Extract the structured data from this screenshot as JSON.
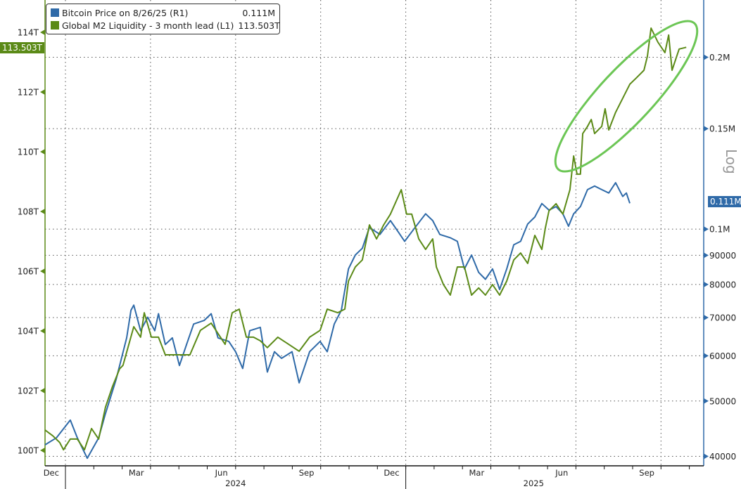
{
  "chart_data": {
    "type": "line",
    "title": "",
    "x_units": "months since 2024-01-01",
    "xlim": [
      -0.72,
      22.5
    ],
    "x_tick_labels": [
      {
        "label": "Dec",
        "month": -1
      },
      {
        "label": "Mar",
        "month": 2
      },
      {
        "label": "Jun",
        "month": 5
      },
      {
        "label": "Sep",
        "month": 8
      },
      {
        "label": "Dec",
        "month": 11
      },
      {
        "label": "Mar",
        "month": 14
      },
      {
        "label": "Jun",
        "month": 17
      },
      {
        "label": "Sep",
        "month": 20
      }
    ],
    "year_labels": [
      {
        "label": "2024",
        "start": 0,
        "end": 12
      },
      {
        "label": "2025",
        "start": 12,
        "end": 24
      }
    ],
    "left_axis": {
      "name": "L1",
      "min": 99.75,
      "max": 115.6,
      "ticks": [
        100,
        102,
        104,
        106,
        108,
        110,
        112,
        114
      ],
      "tick_labels": [
        "100T",
        "102T",
        "104T",
        "106T",
        "108T",
        "110T",
        "112T",
        "114T"
      ],
      "color": "#5b8a17"
    },
    "right_axis": {
      "name": "R1",
      "scale": "log",
      "label": "Log",
      "min": 38500,
      "max": 252000,
      "ticks": [
        40000,
        50000,
        60000,
        70000,
        80000,
        90000,
        100000,
        150000,
        200000
      ],
      "tick_labels": [
        "40000",
        "50000",
        "60000",
        "70000",
        "80000",
        "90000",
        "0.1M",
        "0.15M",
        "0.2M"
      ],
      "color": "#2f6aa8"
    },
    "grid": "dotted horizontal at right-axis ticks, dotted vertical at quarter starts",
    "legend": {
      "placement": "top-left",
      "entries": [
        {
          "label": "Bitcoin Price on 8/26/25 (R1)",
          "value": "0.111M",
          "color": "#2f6aa8"
        },
        {
          "label": "Global M2 Liquidity - 3 month lead (L1)",
          "value": "113.503T",
          "color": "#5b8a17"
        }
      ]
    },
    "last_value_badges": {
      "left": "113.503T",
      "right": "0.111M"
    },
    "annotation": {
      "type": "ellipse",
      "color": "#6cc655",
      "target": "Global M2 Liquidity rise, Jun–Oct 2025"
    },
    "series": [
      {
        "name": "Bitcoin Price on 8/26/25",
        "axis": "R1",
        "color": "#2f6aa8",
        "units": "USD thousands",
        "points": [
          [
            -0.72,
            41.9
          ],
          [
            -0.32,
            43.1
          ],
          [
            0.17,
            46.3
          ],
          [
            0.42,
            43.1
          ],
          [
            0.77,
            39.7
          ],
          [
            1.17,
            43.1
          ],
          [
            1.41,
            47.5
          ],
          [
            1.79,
            54.6
          ],
          [
            2.16,
            64.5
          ],
          [
            2.31,
            72.1
          ],
          [
            2.41,
            73.6
          ],
          [
            2.65,
            66.4
          ],
          [
            2.9,
            70.1
          ],
          [
            3.15,
            66.4
          ],
          [
            3.28,
            71.1
          ],
          [
            3.52,
            62.8
          ],
          [
            3.77,
            64.5
          ],
          [
            4.02,
            57.7
          ],
          [
            4.27,
            62.8
          ],
          [
            4.52,
            68.2
          ],
          [
            4.89,
            69.2
          ],
          [
            5.14,
            71.1
          ],
          [
            5.38,
            64.5
          ],
          [
            5.76,
            63.6
          ],
          [
            6.0,
            61.0
          ],
          [
            6.25,
            57.0
          ],
          [
            6.5,
            66.4
          ],
          [
            6.87,
            67.3
          ],
          [
            7.12,
            56.2
          ],
          [
            7.37,
            61.0
          ],
          [
            7.62,
            59.4
          ],
          [
            7.99,
            61.0
          ],
          [
            8.24,
            53.8
          ],
          [
            8.61,
            61.0
          ],
          [
            8.98,
            63.6
          ],
          [
            9.23,
            61.0
          ],
          [
            9.48,
            68.2
          ],
          [
            9.73,
            72.1
          ],
          [
            9.98,
            85.2
          ],
          [
            10.22,
            90.1
          ],
          [
            10.47,
            92.6
          ],
          [
            10.72,
            100.7
          ],
          [
            11.09,
            97.9
          ],
          [
            11.46,
            103.5
          ],
          [
            11.71,
            99.3
          ],
          [
            11.96,
            95.2
          ],
          [
            12.33,
            100.7
          ],
          [
            12.7,
            106.4
          ],
          [
            12.95,
            103.5
          ],
          [
            13.2,
            97.9
          ],
          [
            13.57,
            96.6
          ],
          [
            13.82,
            95.2
          ],
          [
            14.07,
            85.2
          ],
          [
            14.32,
            90.1
          ],
          [
            14.57,
            84.0
          ],
          [
            14.81,
            81.7
          ],
          [
            15.06,
            85.2
          ],
          [
            15.31,
            78.4
          ],
          [
            15.56,
            85.2
          ],
          [
            15.81,
            93.9
          ],
          [
            16.05,
            95.2
          ],
          [
            16.3,
            102.1
          ],
          [
            16.55,
            105.0
          ],
          [
            16.8,
            110.9
          ],
          [
            17.05,
            108.0
          ],
          [
            17.3,
            109.5
          ],
          [
            17.54,
            106.4
          ],
          [
            17.74,
            101.2
          ],
          [
            17.92,
            106.4
          ],
          [
            18.16,
            109.5
          ],
          [
            18.41,
            117.3
          ],
          [
            18.66,
            119.0
          ],
          [
            18.91,
            117.3
          ],
          [
            19.16,
            115.7
          ],
          [
            19.4,
            120.6
          ],
          [
            19.65,
            114.1
          ],
          [
            19.78,
            115.7
          ],
          [
            19.9,
            111.0
          ]
        ]
      },
      {
        "name": "Global M2 Liquidity - 3 month lead",
        "axis": "L1",
        "color": "#5b8a17",
        "units": "USD trillions",
        "points": [
          [
            -0.72,
            100.68
          ],
          [
            -0.45,
            100.49
          ],
          [
            -0.2,
            100.26
          ],
          [
            -0.07,
            100.02
          ],
          [
            0.17,
            100.38
          ],
          [
            0.42,
            100.38
          ],
          [
            0.67,
            100.02
          ],
          [
            0.92,
            100.73
          ],
          [
            1.17,
            100.38
          ],
          [
            1.41,
            101.44
          ],
          [
            1.66,
            102.14
          ],
          [
            1.91,
            102.73
          ],
          [
            2.03,
            102.85
          ],
          [
            2.41,
            104.14
          ],
          [
            2.65,
            103.79
          ],
          [
            2.78,
            104.61
          ],
          [
            3.03,
            103.79
          ],
          [
            3.28,
            103.79
          ],
          [
            3.52,
            103.2
          ],
          [
            3.9,
            103.2
          ],
          [
            4.39,
            103.2
          ],
          [
            4.76,
            104.02
          ],
          [
            5.14,
            104.26
          ],
          [
            5.63,
            103.55
          ],
          [
            5.88,
            104.61
          ],
          [
            6.13,
            104.73
          ],
          [
            6.38,
            103.79
          ],
          [
            6.63,
            103.79
          ],
          [
            6.87,
            103.67
          ],
          [
            7.12,
            103.44
          ],
          [
            7.49,
            103.79
          ],
          [
            7.87,
            103.55
          ],
          [
            8.24,
            103.32
          ],
          [
            8.61,
            103.79
          ],
          [
            8.98,
            104.02
          ],
          [
            9.23,
            104.73
          ],
          [
            9.6,
            104.61
          ],
          [
            9.85,
            104.73
          ],
          [
            9.98,
            105.67
          ],
          [
            10.22,
            106.14
          ],
          [
            10.47,
            106.38
          ],
          [
            10.72,
            107.55
          ],
          [
            10.97,
            107.08
          ],
          [
            11.22,
            107.55
          ],
          [
            11.46,
            107.91
          ],
          [
            11.84,
            108.73
          ],
          [
            12.03,
            107.91
          ],
          [
            12.21,
            107.91
          ],
          [
            12.46,
            107.08
          ],
          [
            12.7,
            106.73
          ],
          [
            12.95,
            107.08
          ],
          [
            13.08,
            106.14
          ],
          [
            13.33,
            105.55
          ],
          [
            13.57,
            105.2
          ],
          [
            13.82,
            106.14
          ],
          [
            14.07,
            106.14
          ],
          [
            14.32,
            105.2
          ],
          [
            14.57,
            105.44
          ],
          [
            14.81,
            105.2
          ],
          [
            15.06,
            105.55
          ],
          [
            15.31,
            105.2
          ],
          [
            15.56,
            105.67
          ],
          [
            15.81,
            106.38
          ],
          [
            16.05,
            106.61
          ],
          [
            16.3,
            106.26
          ],
          [
            16.55,
            107.2
          ],
          [
            16.8,
            106.73
          ],
          [
            16.92,
            107.44
          ],
          [
            17.05,
            108.02
          ],
          [
            17.3,
            108.26
          ],
          [
            17.54,
            107.91
          ],
          [
            17.79,
            108.73
          ],
          [
            17.92,
            109.86
          ],
          [
            18.04,
            109.25
          ],
          [
            18.16,
            109.25
          ],
          [
            18.24,
            110.61
          ],
          [
            18.41,
            110.85
          ],
          [
            18.54,
            111.08
          ],
          [
            18.66,
            110.61
          ],
          [
            18.91,
            110.85
          ],
          [
            19.03,
            111.44
          ],
          [
            19.16,
            110.73
          ],
          [
            19.4,
            111.32
          ],
          [
            19.65,
            111.79
          ],
          [
            19.9,
            112.26
          ],
          [
            20.15,
            112.49
          ],
          [
            20.4,
            112.73
          ],
          [
            20.52,
            113.2
          ],
          [
            20.65,
            114.14
          ],
          [
            20.89,
            113.67
          ],
          [
            21.14,
            113.32
          ],
          [
            21.27,
            113.91
          ],
          [
            21.39,
            112.73
          ],
          [
            21.64,
            113.44
          ],
          [
            21.89,
            113.5
          ]
        ]
      }
    ]
  }
}
